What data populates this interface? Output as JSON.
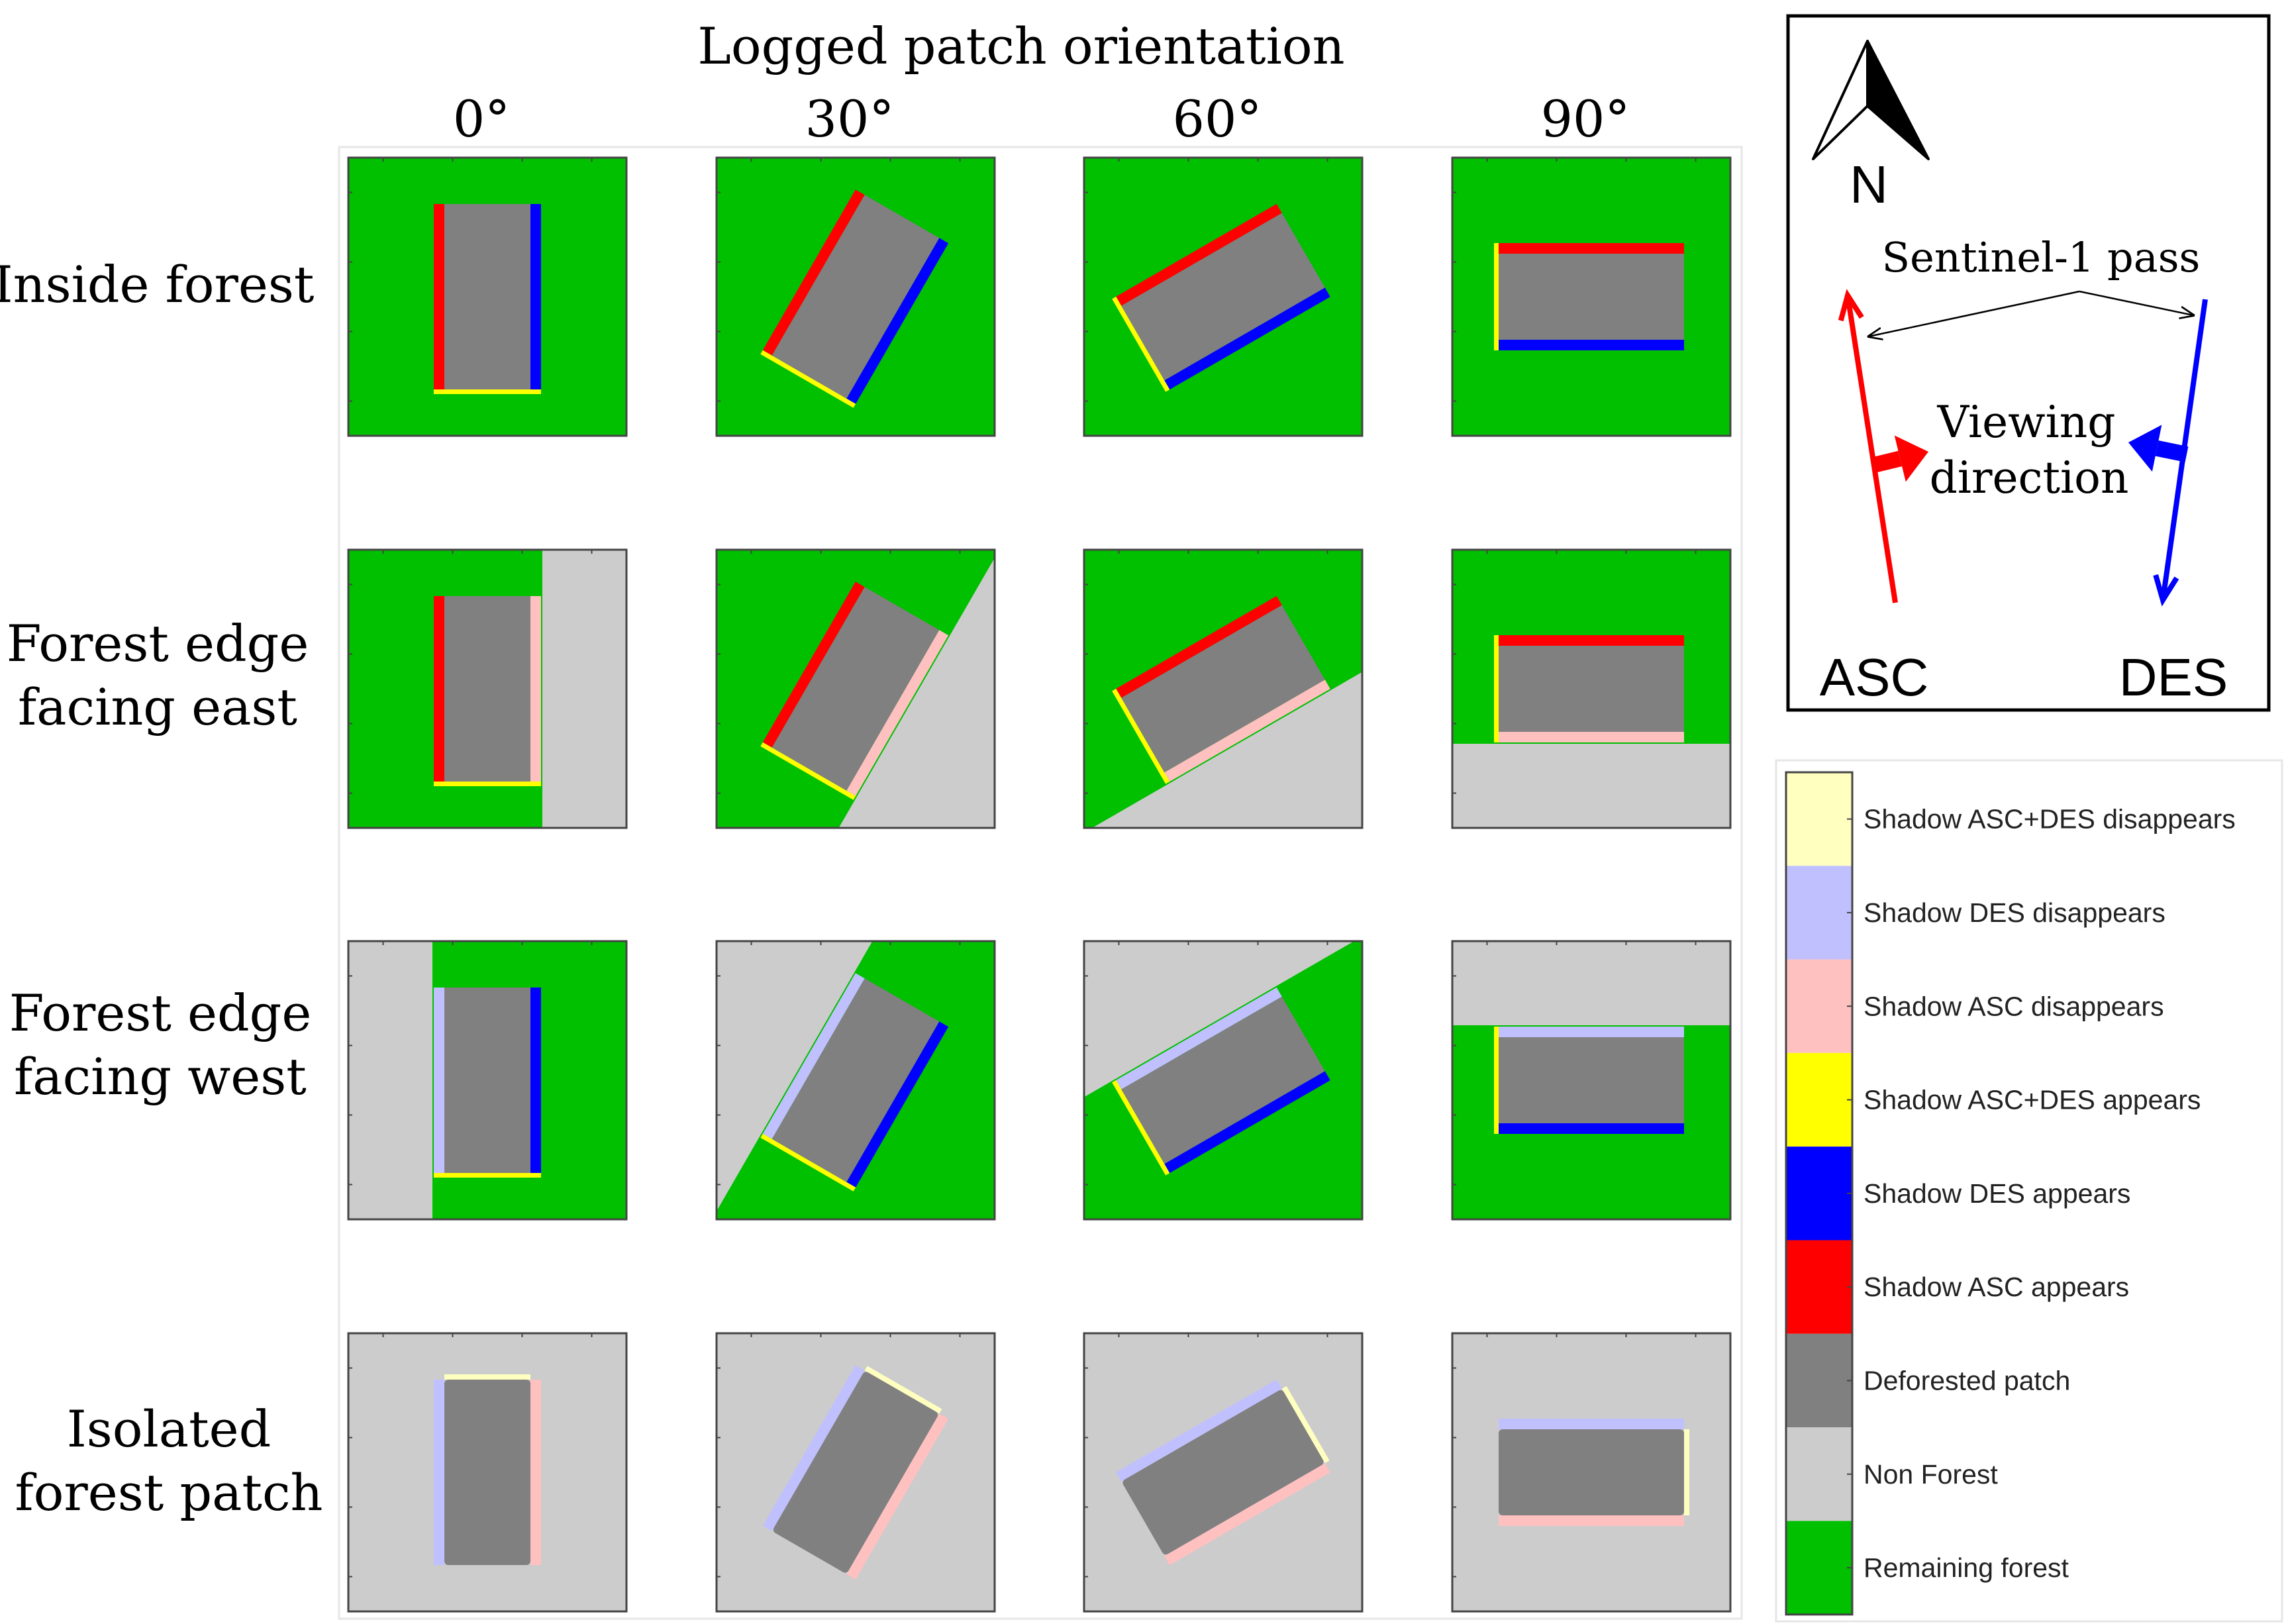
{
  "figure": {
    "column_header_title": "Logged patch orientation",
    "orientations": [
      "0°",
      "30°",
      "60°",
      "90°"
    ],
    "rows": [
      {
        "label_lines": [
          "Inside forest"
        ],
        "scenario": "inside"
      },
      {
        "label_lines": [
          "Forest edge",
          "facing east"
        ],
        "scenario": "edge-east"
      },
      {
        "label_lines": [
          "Forest edge",
          "facing west"
        ],
        "scenario": "edge-west"
      },
      {
        "label_lines": [
          "Isolated",
          "forest patch"
        ],
        "scenario": "isolated"
      }
    ],
    "rotation_angles_deg": [
      0,
      30,
      60,
      90
    ]
  },
  "compass": {
    "north_label": "N",
    "pass_label": "Sentinel-1 pass",
    "viewing_label_lines": [
      "Viewing",
      "direction"
    ],
    "asc_label": "ASC",
    "des_label": "DES"
  },
  "legend": {
    "items": [
      {
        "label": "Shadow ASC+DES disappears",
        "color": "#ffffc0"
      },
      {
        "label": "Shadow DES disappears",
        "color": "#c0c0ff"
      },
      {
        "label": "Shadow ASC disappears",
        "color": "#ffc0c0"
      },
      {
        "label": "Shadow ASC+DES appears",
        "color": "#ffff00"
      },
      {
        "label": "Shadow DES appears",
        "color": "#0000ff"
      },
      {
        "label": "Shadow ASC appears",
        "color": "#ff0000"
      },
      {
        "label": "Deforested patch",
        "color": "#808080"
      },
      {
        "label": "Non Forest",
        "color": "#cccccc"
      },
      {
        "label": "Remaining forest",
        "color": "#00c000"
      }
    ]
  },
  "colors": {
    "forest": "#00c000",
    "nonforest": "#cccccc",
    "patch": "#808080",
    "asc_appears": "#ff0000",
    "des_appears": "#0000ff",
    "both_appears": "#ffff00",
    "asc_disappears": "#ffc0c0",
    "des_disappears": "#c0c0ff",
    "both_disappears": "#ffffc0",
    "asc_arrow": "#ff0000",
    "des_arrow": "#0000ff"
  }
}
